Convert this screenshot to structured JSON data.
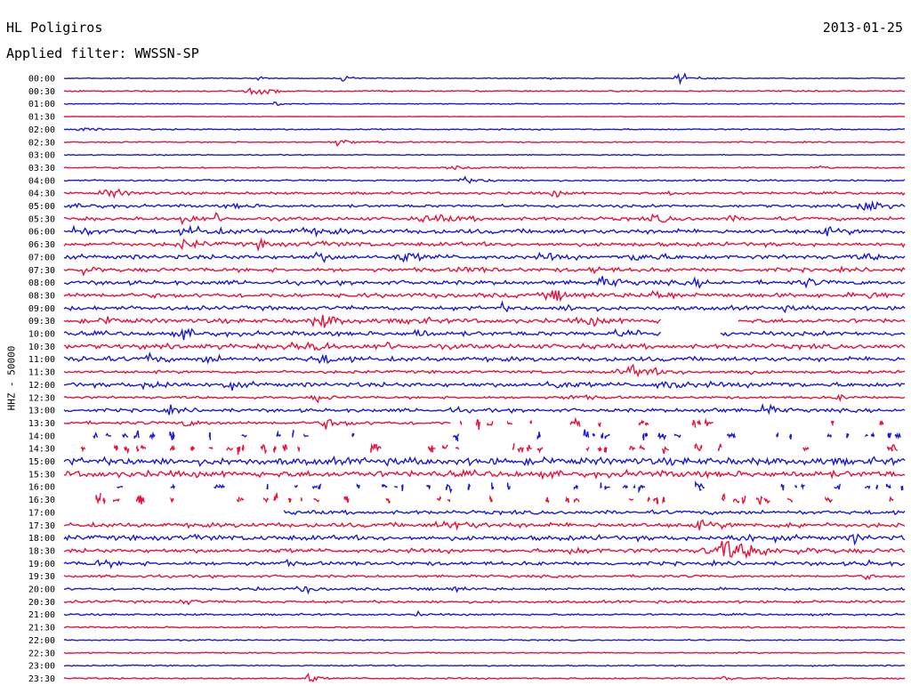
{
  "header": {
    "station": "HL Poligiros",
    "date": "2013-01-25",
    "filter": "Applied filter: WWSSN-SP"
  },
  "chart_data": {
    "type": "line",
    "title": "HL Poligiros",
    "ylabel": "HHZ - 50000",
    "colors": {
      "blue": "#1a1ad9",
      "red": "#e8123c"
    },
    "traces": [
      {
        "label": "00:00",
        "color": "blue",
        "base": 0.6,
        "gaps": [],
        "events": [
          [
            0.73,
            8,
            0.02
          ],
          [
            0.33,
            4,
            0.02
          ],
          [
            0.23,
            3,
            0.01
          ],
          [
            0.57,
            3,
            0.01
          ]
        ]
      },
      {
        "label": "00:30",
        "color": "red",
        "base": 0.8,
        "gaps": [],
        "events": [
          [
            0.22,
            5,
            0.03
          ],
          [
            0.24,
            3,
            0.02
          ]
        ]
      },
      {
        "label": "01:00",
        "color": "blue",
        "base": 0.6,
        "gaps": [],
        "events": [
          [
            0.25,
            7,
            0.01
          ],
          [
            0.99,
            2,
            0.02
          ]
        ]
      },
      {
        "label": "01:30",
        "color": "red",
        "base": 0.3,
        "gaps": [],
        "events": []
      },
      {
        "label": "02:00",
        "color": "blue",
        "base": 0.8,
        "gaps": [],
        "events": [
          [
            0.02,
            3,
            0.02
          ]
        ]
      },
      {
        "label": "02:30",
        "color": "red",
        "base": 0.8,
        "gaps": [],
        "events": [
          [
            0.32,
            5,
            0.03
          ]
        ]
      },
      {
        "label": "03:00",
        "color": "blue",
        "base": 0.6,
        "gaps": [],
        "events": [
          [
            0.11,
            2,
            0.01
          ]
        ]
      },
      {
        "label": "03:30",
        "color": "red",
        "base": 0.9,
        "gaps": [],
        "events": [
          [
            0.46,
            3,
            0.02
          ],
          [
            0.9,
            5,
            0.01
          ]
        ]
      },
      {
        "label": "04:00",
        "color": "blue",
        "base": 1.0,
        "gaps": [],
        "events": [
          [
            0.47,
            4,
            0.04
          ]
        ]
      },
      {
        "label": "04:30",
        "color": "red",
        "base": 1.6,
        "gaps": [],
        "events": [
          [
            0.05,
            7,
            0.03
          ],
          [
            0.58,
            5,
            0.02
          ],
          [
            0.72,
            3,
            0.02
          ]
        ]
      },
      {
        "label": "05:00",
        "color": "blue",
        "base": 1.8,
        "gaps": [],
        "events": [
          [
            0.02,
            4,
            0.03
          ],
          [
            0.95,
            14,
            0.02
          ],
          [
            0.2,
            3,
            0.03
          ]
        ]
      },
      {
        "label": "05:30",
        "color": "red",
        "base": 2.2,
        "gaps": [],
        "events": [
          [
            0.14,
            7,
            0.02
          ],
          [
            0.43,
            5,
            0.05
          ],
          [
            0.7,
            5,
            0.03
          ],
          [
            0.79,
            6,
            0.01
          ],
          [
            0.18,
            7,
            0.01
          ]
        ]
      },
      {
        "label": "06:00",
        "color": "blue",
        "base": 2.8,
        "gaps": [],
        "events": [
          [
            0.01,
            6,
            0.03
          ],
          [
            0.15,
            5,
            0.04
          ],
          [
            0.28,
            4,
            0.04
          ],
          [
            0.9,
            4,
            0.03
          ]
        ]
      },
      {
        "label": "06:30",
        "color": "red",
        "base": 2.5,
        "gaps": [],
        "events": [
          [
            0.14,
            5,
            0.03
          ],
          [
            0.23,
            5,
            0.02
          ],
          [
            0.3,
            3,
            0.04
          ]
        ]
      },
      {
        "label": "07:00",
        "color": "blue",
        "base": 2.7,
        "gaps": [],
        "events": [
          [
            0.3,
            7,
            0.02
          ],
          [
            0.4,
            6,
            0.03
          ],
          [
            0.57,
            5,
            0.02
          ],
          [
            0.68,
            8,
            0.03
          ],
          [
            0.95,
            4,
            0.02
          ]
        ]
      },
      {
        "label": "07:30",
        "color": "red",
        "base": 2.5,
        "gaps": [],
        "events": [
          [
            0.02,
            5,
            0.02
          ],
          [
            0.47,
            4,
            0.03
          ],
          [
            0.63,
            4,
            0.02
          ]
        ]
      },
      {
        "label": "08:00",
        "color": "blue",
        "base": 2.6,
        "gaps": [],
        "events": [
          [
            0.64,
            6,
            0.03
          ],
          [
            0.88,
            6,
            0.02
          ],
          [
            0.75,
            4,
            0.02
          ]
        ]
      },
      {
        "label": "08:30",
        "color": "red",
        "base": 2.8,
        "gaps": [],
        "events": [
          [
            0.58,
            6,
            0.04
          ],
          [
            0.7,
            6,
            0.03
          ],
          [
            0.96,
            12,
            0.01
          ]
        ]
      },
      {
        "label": "09:00",
        "color": "blue",
        "base": 2.6,
        "gaps": [],
        "events": [
          [
            0.52,
            5,
            0.01
          ],
          [
            0.6,
            4,
            0.02
          ],
          [
            0.85,
            3,
            0.02
          ]
        ]
      },
      {
        "label": "09:30",
        "color": "red",
        "base": 2.8,
        "gaps": [
          [
            0.71,
            0.8
          ]
        ],
        "events": [
          [
            0.3,
            12,
            0.03
          ],
          [
            0.05,
            5,
            0.02
          ],
          [
            0.41,
            7,
            0.02
          ],
          [
            0.62,
            5,
            0.04
          ],
          [
            0.76,
            10,
            0.01
          ]
        ]
      },
      {
        "label": "10:00",
        "color": "blue",
        "base": 2.8,
        "gaps": [
          [
            0.71,
            0.78
          ]
        ],
        "events": [
          [
            0.14,
            5,
            0.03
          ],
          [
            0.42,
            10,
            0.01
          ],
          [
            0.66,
            5,
            0.04
          ]
        ]
      },
      {
        "label": "10:30",
        "color": "red",
        "base": 3.0,
        "gaps": [],
        "events": [
          [
            0.3,
            14,
            0.01
          ],
          [
            0.38,
            4,
            0.03
          ],
          [
            0.27,
            5,
            0.03
          ]
        ]
      },
      {
        "label": "11:00",
        "color": "blue",
        "base": 2.8,
        "gaps": [],
        "events": [
          [
            0.1,
            14,
            0.01
          ],
          [
            0.17,
            6,
            0.02
          ],
          [
            0.02,
            5,
            0.02
          ],
          [
            0.3,
            7,
            0.03
          ]
        ]
      },
      {
        "label": "11:30",
        "color": "red",
        "base": 1.8,
        "gaps": [],
        "events": [
          [
            0.67,
            8,
            0.05
          ],
          [
            0.8,
            3,
            0.02
          ]
        ]
      },
      {
        "label": "12:00",
        "color": "blue",
        "base": 2.8,
        "gaps": [],
        "events": [
          [
            0.1,
            7,
            0.03
          ],
          [
            0.19,
            6,
            0.02
          ],
          [
            0.58,
            8,
            0.02
          ],
          [
            0.71,
            6,
            0.04
          ],
          [
            0.84,
            6,
            0.02
          ]
        ]
      },
      {
        "label": "12:30",
        "color": "red",
        "base": 1.6,
        "gaps": [],
        "events": [
          [
            0.3,
            5,
            0.02
          ],
          [
            0.6,
            4,
            0.03
          ],
          [
            0.92,
            4,
            0.02
          ]
        ]
      },
      {
        "label": "13:00",
        "color": "blue",
        "base": 2.2,
        "gaps": [],
        "events": [
          [
            0.12,
            5,
            0.02
          ],
          [
            0.46,
            7,
            0.01
          ],
          [
            0.83,
            8,
            0.02
          ],
          [
            0.76,
            4,
            0.02
          ]
        ]
      },
      {
        "label": "13:30",
        "color": "red",
        "base": 2.0,
        "gaps": [
          [
            0.46,
            1.0
          ]
        ],
        "events": [
          [
            0.14,
            4,
            0.03
          ],
          [
            0.31,
            6,
            0.03
          ]
        ]
      },
      {
        "label": "14:00",
        "color": "blue",
        "base": 3.5,
        "gaps": [
          [
            0,
            1.0
          ]
        ],
        "events": []
      },
      {
        "label": "14:30",
        "color": "red",
        "base": 3.5,
        "gaps": [
          [
            0,
            1.0
          ]
        ],
        "events": []
      },
      {
        "label": "15:00",
        "color": "blue",
        "base": 4.5,
        "gaps": [],
        "events": []
      },
      {
        "label": "15:30",
        "color": "red",
        "base": 4.0,
        "gaps": [],
        "events": []
      },
      {
        "label": "16:00",
        "color": "blue",
        "base": 3.5,
        "gaps": [
          [
            0,
            1.0
          ]
        ],
        "events": []
      },
      {
        "label": "16:30",
        "color": "red",
        "base": 3.5,
        "gaps": [
          [
            0,
            1.0
          ]
        ],
        "events": []
      },
      {
        "label": "17:00",
        "color": "blue",
        "base": 2.4,
        "gaps": [
          [
            0,
            0.26
          ]
        ],
        "events": [
          [
            0.19,
            7,
            0.01
          ]
        ]
      },
      {
        "label": "17:30",
        "color": "red",
        "base": 2.8,
        "gaps": [],
        "events": [
          [
            0.45,
            5,
            0.05
          ],
          [
            0.75,
            4,
            0.04
          ],
          [
            0.86,
            4,
            0.02
          ]
        ]
      },
      {
        "label": "18:00",
        "color": "blue",
        "base": 3.0,
        "gaps": [],
        "events": [
          [
            0.8,
            5,
            0.04
          ],
          [
            0.94,
            9,
            0.01
          ],
          [
            0.15,
            3,
            0.03
          ]
        ]
      },
      {
        "label": "18:30",
        "color": "red",
        "base": 2.6,
        "gaps": [],
        "events": [
          [
            0.78,
            14,
            0.07
          ],
          [
            0.6,
            3,
            0.04
          ]
        ]
      },
      {
        "label": "19:00",
        "color": "blue",
        "base": 2.4,
        "gaps": [],
        "events": [
          [
            0.04,
            4,
            0.03
          ],
          [
            0.26,
            5,
            0.01
          ],
          [
            0.95,
            3,
            0.02
          ]
        ]
      },
      {
        "label": "19:30",
        "color": "red",
        "base": 1.6,
        "gaps": [],
        "events": [
          [
            0.09,
            4,
            0.01
          ],
          [
            0.95,
            5,
            0.01
          ]
        ]
      },
      {
        "label": "20:00",
        "color": "blue",
        "base": 1.6,
        "gaps": [],
        "events": [
          [
            0.28,
            6,
            0.02
          ],
          [
            0.46,
            5,
            0.02
          ],
          [
            0.23,
            4,
            0.01
          ]
        ]
      },
      {
        "label": "20:30",
        "color": "red",
        "base": 1.6,
        "gaps": [],
        "events": [
          [
            0.14,
            12,
            0.01
          ]
        ]
      },
      {
        "label": "21:00",
        "color": "blue",
        "base": 1.2,
        "gaps": [],
        "events": [
          [
            0.42,
            3,
            0.01
          ]
        ]
      },
      {
        "label": "21:30",
        "color": "red",
        "base": 1.0,
        "gaps": [],
        "events": []
      },
      {
        "label": "22:00",
        "color": "blue",
        "base": 0.8,
        "gaps": [],
        "events": []
      },
      {
        "label": "22:30",
        "color": "red",
        "base": 0.8,
        "gaps": [],
        "events": []
      },
      {
        "label": "23:00",
        "color": "blue",
        "base": 0.8,
        "gaps": [],
        "events": []
      },
      {
        "label": "23:30",
        "color": "red",
        "base": 1.0,
        "gaps": [],
        "events": [
          [
            0.29,
            12,
            0.01
          ],
          [
            0.78,
            8,
            0.01
          ]
        ]
      }
    ]
  }
}
